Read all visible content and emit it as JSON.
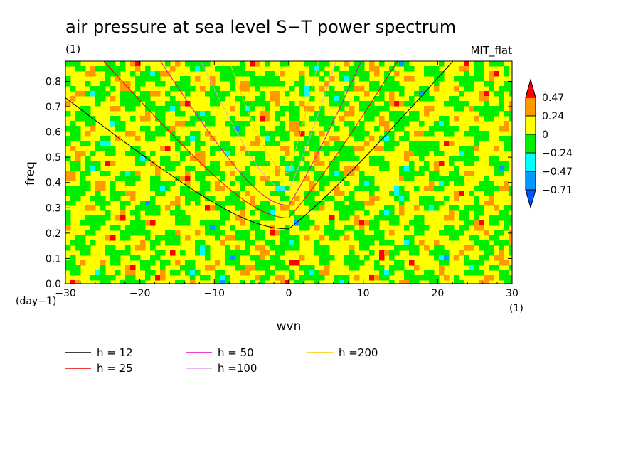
{
  "title": "air pressure at sea level S−T power spectrum",
  "units_left": "(1)",
  "model_label": "MIT_flat",
  "chart_data": {
    "type": "heatmap",
    "xlabel": "wvn",
    "ylabel": "freq",
    "x_units": "(1)",
    "y_units": "(day−1)",
    "xlim": [
      -30,
      30
    ],
    "ylim": [
      0,
      0.88
    ],
    "x_ticks": [
      "−30",
      "−20",
      "−10",
      "0",
      "10",
      "20",
      "30"
    ],
    "y_ticks": [
      "0.0",
      "0.1",
      "0.2",
      "0.3",
      "0.4",
      "0.5",
      "0.6",
      "0.7",
      "0.8"
    ],
    "colorbar": {
      "levels": [
        "0.47",
        "0.24",
        "0",
        "−0.24",
        "−0.47",
        "−0.71"
      ],
      "colors": [
        "#ff0000",
        "#ff9900",
        "#ffff00",
        "#00ee00",
        "#00ffff",
        "#0099ff",
        "#0055ff"
      ]
    },
    "series": [
      {
        "name": "h = 12",
        "color": "#000000"
      },
      {
        "name": "h = 25",
        "color": "#e80000"
      },
      {
        "name": "h = 50",
        "color": "#e000c0"
      },
      {
        "name": "h =100",
        "color": "#e0a0e8"
      },
      {
        "name": "h =200",
        "color": "#ffcc00"
      }
    ]
  }
}
